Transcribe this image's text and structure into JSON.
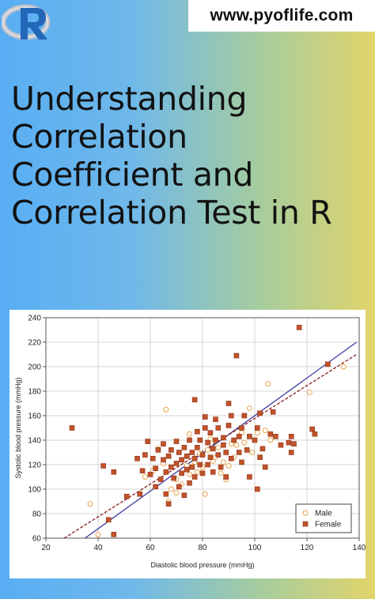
{
  "header": {
    "logo_icon": "r-logo-icon",
    "site_url": "www.pyoflife.com"
  },
  "title": "Understanding Correlation Coefficient and Correlation Test in R",
  "colors": {
    "male": "#e8a24a",
    "female": "#c2522a",
    "regression_solid": "#3c3ca0",
    "regression_dashed": "#8b1e1e"
  },
  "chart_data": {
    "type": "scatter",
    "xlabel": "Diastolic blood pressure (mmHg)",
    "ylabel": "Systolic blood pressure (mmHg)",
    "xlim": [
      20,
      140
    ],
    "ylim": [
      60,
      240
    ],
    "xticks": [
      20,
      40,
      60,
      80,
      100,
      120,
      140
    ],
    "yticks": [
      60,
      80,
      100,
      120,
      140,
      160,
      180,
      200,
      220,
      240
    ],
    "grid": true,
    "legend": "bottom-right",
    "series": [
      {
        "name": "Male",
        "marker": "open-circle",
        "points": [
          [
            37,
            88
          ],
          [
            40,
            63
          ],
          [
            58,
            110
          ],
          [
            61,
            115
          ],
          [
            63,
            133
          ],
          [
            65,
            121
          ],
          [
            66,
            165
          ],
          [
            67,
            90
          ],
          [
            68,
            100
          ],
          [
            70,
            97
          ],
          [
            70,
            108
          ],
          [
            72,
            104
          ],
          [
            74,
            119
          ],
          [
            75,
            145
          ],
          [
            75,
            112
          ],
          [
            77,
            122
          ],
          [
            78,
            114
          ],
          [
            79,
            129
          ],
          [
            80,
            118
          ],
          [
            81,
            96
          ],
          [
            82,
            132
          ],
          [
            83,
            141
          ],
          [
            84,
            123
          ],
          [
            85,
            126
          ],
          [
            86,
            134
          ],
          [
            87,
            113
          ],
          [
            88,
            122
          ],
          [
            89,
            108
          ],
          [
            90,
            119
          ],
          [
            91,
            137
          ],
          [
            92,
            126
          ],
          [
            93,
            136
          ],
          [
            95,
            146
          ],
          [
            96,
            138
          ],
          [
            98,
            166
          ],
          [
            99,
            130
          ],
          [
            101,
            146
          ],
          [
            104,
            148
          ],
          [
            105,
            186
          ],
          [
            106,
            140
          ],
          [
            121,
            179
          ],
          [
            134,
            200
          ]
        ]
      },
      {
        "name": "Female",
        "marker": "filled-square",
        "points": [
          [
            30,
            150
          ],
          [
            42,
            119
          ],
          [
            44,
            75
          ],
          [
            46,
            114
          ],
          [
            46,
            63
          ],
          [
            51,
            94
          ],
          [
            55,
            125
          ],
          [
            56,
            96
          ],
          [
            57,
            115
          ],
          [
            58,
            128
          ],
          [
            59,
            139
          ],
          [
            60,
            112
          ],
          [
            61,
            125
          ],
          [
            62,
            102
          ],
          [
            62,
            117
          ],
          [
            63,
            132
          ],
          [
            64,
            108
          ],
          [
            65,
            124
          ],
          [
            65,
            137
          ],
          [
            66,
            96
          ],
          [
            66,
            114
          ],
          [
            67,
            127
          ],
          [
            67,
            88
          ],
          [
            68,
            118
          ],
          [
            68,
            132
          ],
          [
            69,
            109
          ],
          [
            70,
            121
          ],
          [
            70,
            139
          ],
          [
            71,
            102
          ],
          [
            71,
            130
          ],
          [
            72,
            113
          ],
          [
            72,
            124
          ],
          [
            73,
            95
          ],
          [
            73,
            134
          ],
          [
            74,
            116
          ],
          [
            74,
            127
          ],
          [
            75,
            105
          ],
          [
            75,
            140
          ],
          [
            76,
            118
          ],
          [
            76,
            130
          ],
          [
            77,
            110
          ],
          [
            77,
            125
          ],
          [
            77,
            173
          ],
          [
            78,
            134
          ],
          [
            78,
            147
          ],
          [
            79,
            120
          ],
          [
            79,
            140
          ],
          [
            80,
            113
          ],
          [
            80,
            128
          ],
          [
            81,
            150
          ],
          [
            81,
            159
          ],
          [
            82,
            138
          ],
          [
            82,
            120
          ],
          [
            83,
            126
          ],
          [
            83,
            146
          ],
          [
            84,
            133
          ],
          [
            84,
            114
          ],
          [
            85,
            140
          ],
          [
            85,
            157
          ],
          [
            86,
            128
          ],
          [
            86,
            150
          ],
          [
            87,
            118
          ],
          [
            88,
            136
          ],
          [
            88,
            142
          ],
          [
            89,
            110
          ],
          [
            89,
            130
          ],
          [
            90,
            152
          ],
          [
            90,
            170
          ],
          [
            91,
            125
          ],
          [
            91,
            160
          ],
          [
            92,
            140
          ],
          [
            93,
            209
          ],
          [
            94,
            130
          ],
          [
            94,
            143
          ],
          [
            95,
            150
          ],
          [
            95,
            122
          ],
          [
            96,
            160
          ],
          [
            97,
            132
          ],
          [
            98,
            143
          ],
          [
            98,
            110
          ],
          [
            100,
            140
          ],
          [
            101,
            150
          ],
          [
            101,
            100
          ],
          [
            102,
            162
          ],
          [
            102,
            126
          ],
          [
            103,
            133
          ],
          [
            104,
            118
          ],
          [
            106,
            145
          ],
          [
            107,
            163
          ],
          [
            108,
            143
          ],
          [
            110,
            136
          ],
          [
            113,
            138
          ],
          [
            114,
            130
          ],
          [
            114,
            143
          ],
          [
            115,
            137
          ],
          [
            117,
            232
          ],
          [
            122,
            149
          ],
          [
            123,
            145
          ],
          [
            128,
            202
          ]
        ]
      }
    ],
    "fit_lines": [
      {
        "style": "solid",
        "points": [
          [
            35,
            60
          ],
          [
            139,
            220
          ]
        ]
      },
      {
        "style": "dashed",
        "points": [
          [
            27,
            60
          ],
          [
            139,
            210
          ]
        ]
      }
    ]
  }
}
